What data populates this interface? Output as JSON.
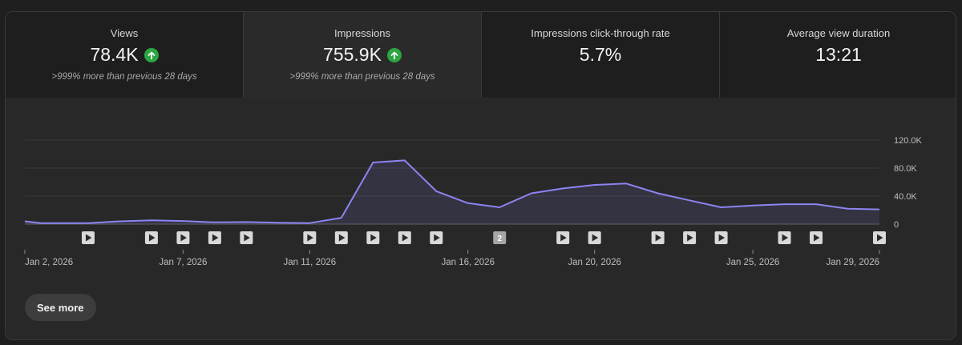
{
  "metrics": [
    {
      "label": "Views",
      "value": "78.4K",
      "trend": "up",
      "subtext": ">999% more than previous 28 days"
    },
    {
      "label": "Impressions",
      "value": "755.9K",
      "trend": "up",
      "subtext": ">999% more than previous 28 days"
    },
    {
      "label": "Impressions click-through rate",
      "value": "5.7%",
      "trend": "",
      "subtext": ""
    },
    {
      "label": "Average view duration",
      "value": "13:21",
      "trend": "",
      "subtext": ""
    }
  ],
  "chart_data": {
    "type": "area",
    "title": "Impressions",
    "y_tick_labels": [
      "120.0K",
      "80.0K",
      "40.0K",
      "0"
    ],
    "ylim": [
      0,
      120000
    ],
    "x_tick_labels": [
      {
        "day": 1,
        "label": "Jan 2, 2026"
      },
      {
        "day": 6,
        "label": "Jan 7, 2026"
      },
      {
        "day": 10,
        "label": "Jan 11, 2026"
      },
      {
        "day": 15,
        "label": "Jan 16, 2026"
      },
      {
        "day": 19,
        "label": "Jan 20, 2026"
      },
      {
        "day": 24,
        "label": "Jan 25, 2026"
      },
      {
        "day": 28,
        "label": "Jan 29, 2026"
      }
    ],
    "x_range": [
      1,
      28
    ],
    "series": [
      {
        "name": "Impressions",
        "color": "#8c84f2",
        "x": [
          1,
          1.5,
          2,
          3,
          4,
          5,
          6,
          7,
          8,
          9,
          10,
          11,
          12,
          13,
          14,
          15,
          16,
          17,
          18,
          19,
          20,
          21,
          22,
          23,
          24,
          25,
          26,
          27,
          28
        ],
        "values": [
          4000,
          1500,
          1500,
          1500,
          4000,
          5500,
          4500,
          2500,
          3000,
          2000,
          1500,
          9000,
          88000,
          91000,
          47000,
          30000,
          24000,
          44000,
          51000,
          56000,
          58000,
          44000,
          34000,
          24000,
          26500,
          28500,
          28500,
          22000,
          21000
        ]
      }
    ],
    "video_markers": [
      {
        "day": 3,
        "label": ""
      },
      {
        "day": 5,
        "label": ""
      },
      {
        "day": 6,
        "label": ""
      },
      {
        "day": 7,
        "label": ""
      },
      {
        "day": 8,
        "label": ""
      },
      {
        "day": 10,
        "label": ""
      },
      {
        "day": 11,
        "label": ""
      },
      {
        "day": 12,
        "label": ""
      },
      {
        "day": 13,
        "label": ""
      },
      {
        "day": 14,
        "label": ""
      },
      {
        "day": 16,
        "label": "2"
      },
      {
        "day": 18,
        "label": ""
      },
      {
        "day": 19,
        "label": ""
      },
      {
        "day": 21,
        "label": ""
      },
      {
        "day": 22,
        "label": ""
      },
      {
        "day": 23,
        "label": ""
      },
      {
        "day": 25,
        "label": ""
      },
      {
        "day": 26,
        "label": ""
      },
      {
        "day": 28,
        "label": ""
      }
    ]
  },
  "actions": {
    "see_more_label": "See more"
  },
  "colors": {
    "accent_line": "#8c84f2",
    "trend_up": "#2ba640",
    "marker_bg": "#d9d9d9"
  }
}
